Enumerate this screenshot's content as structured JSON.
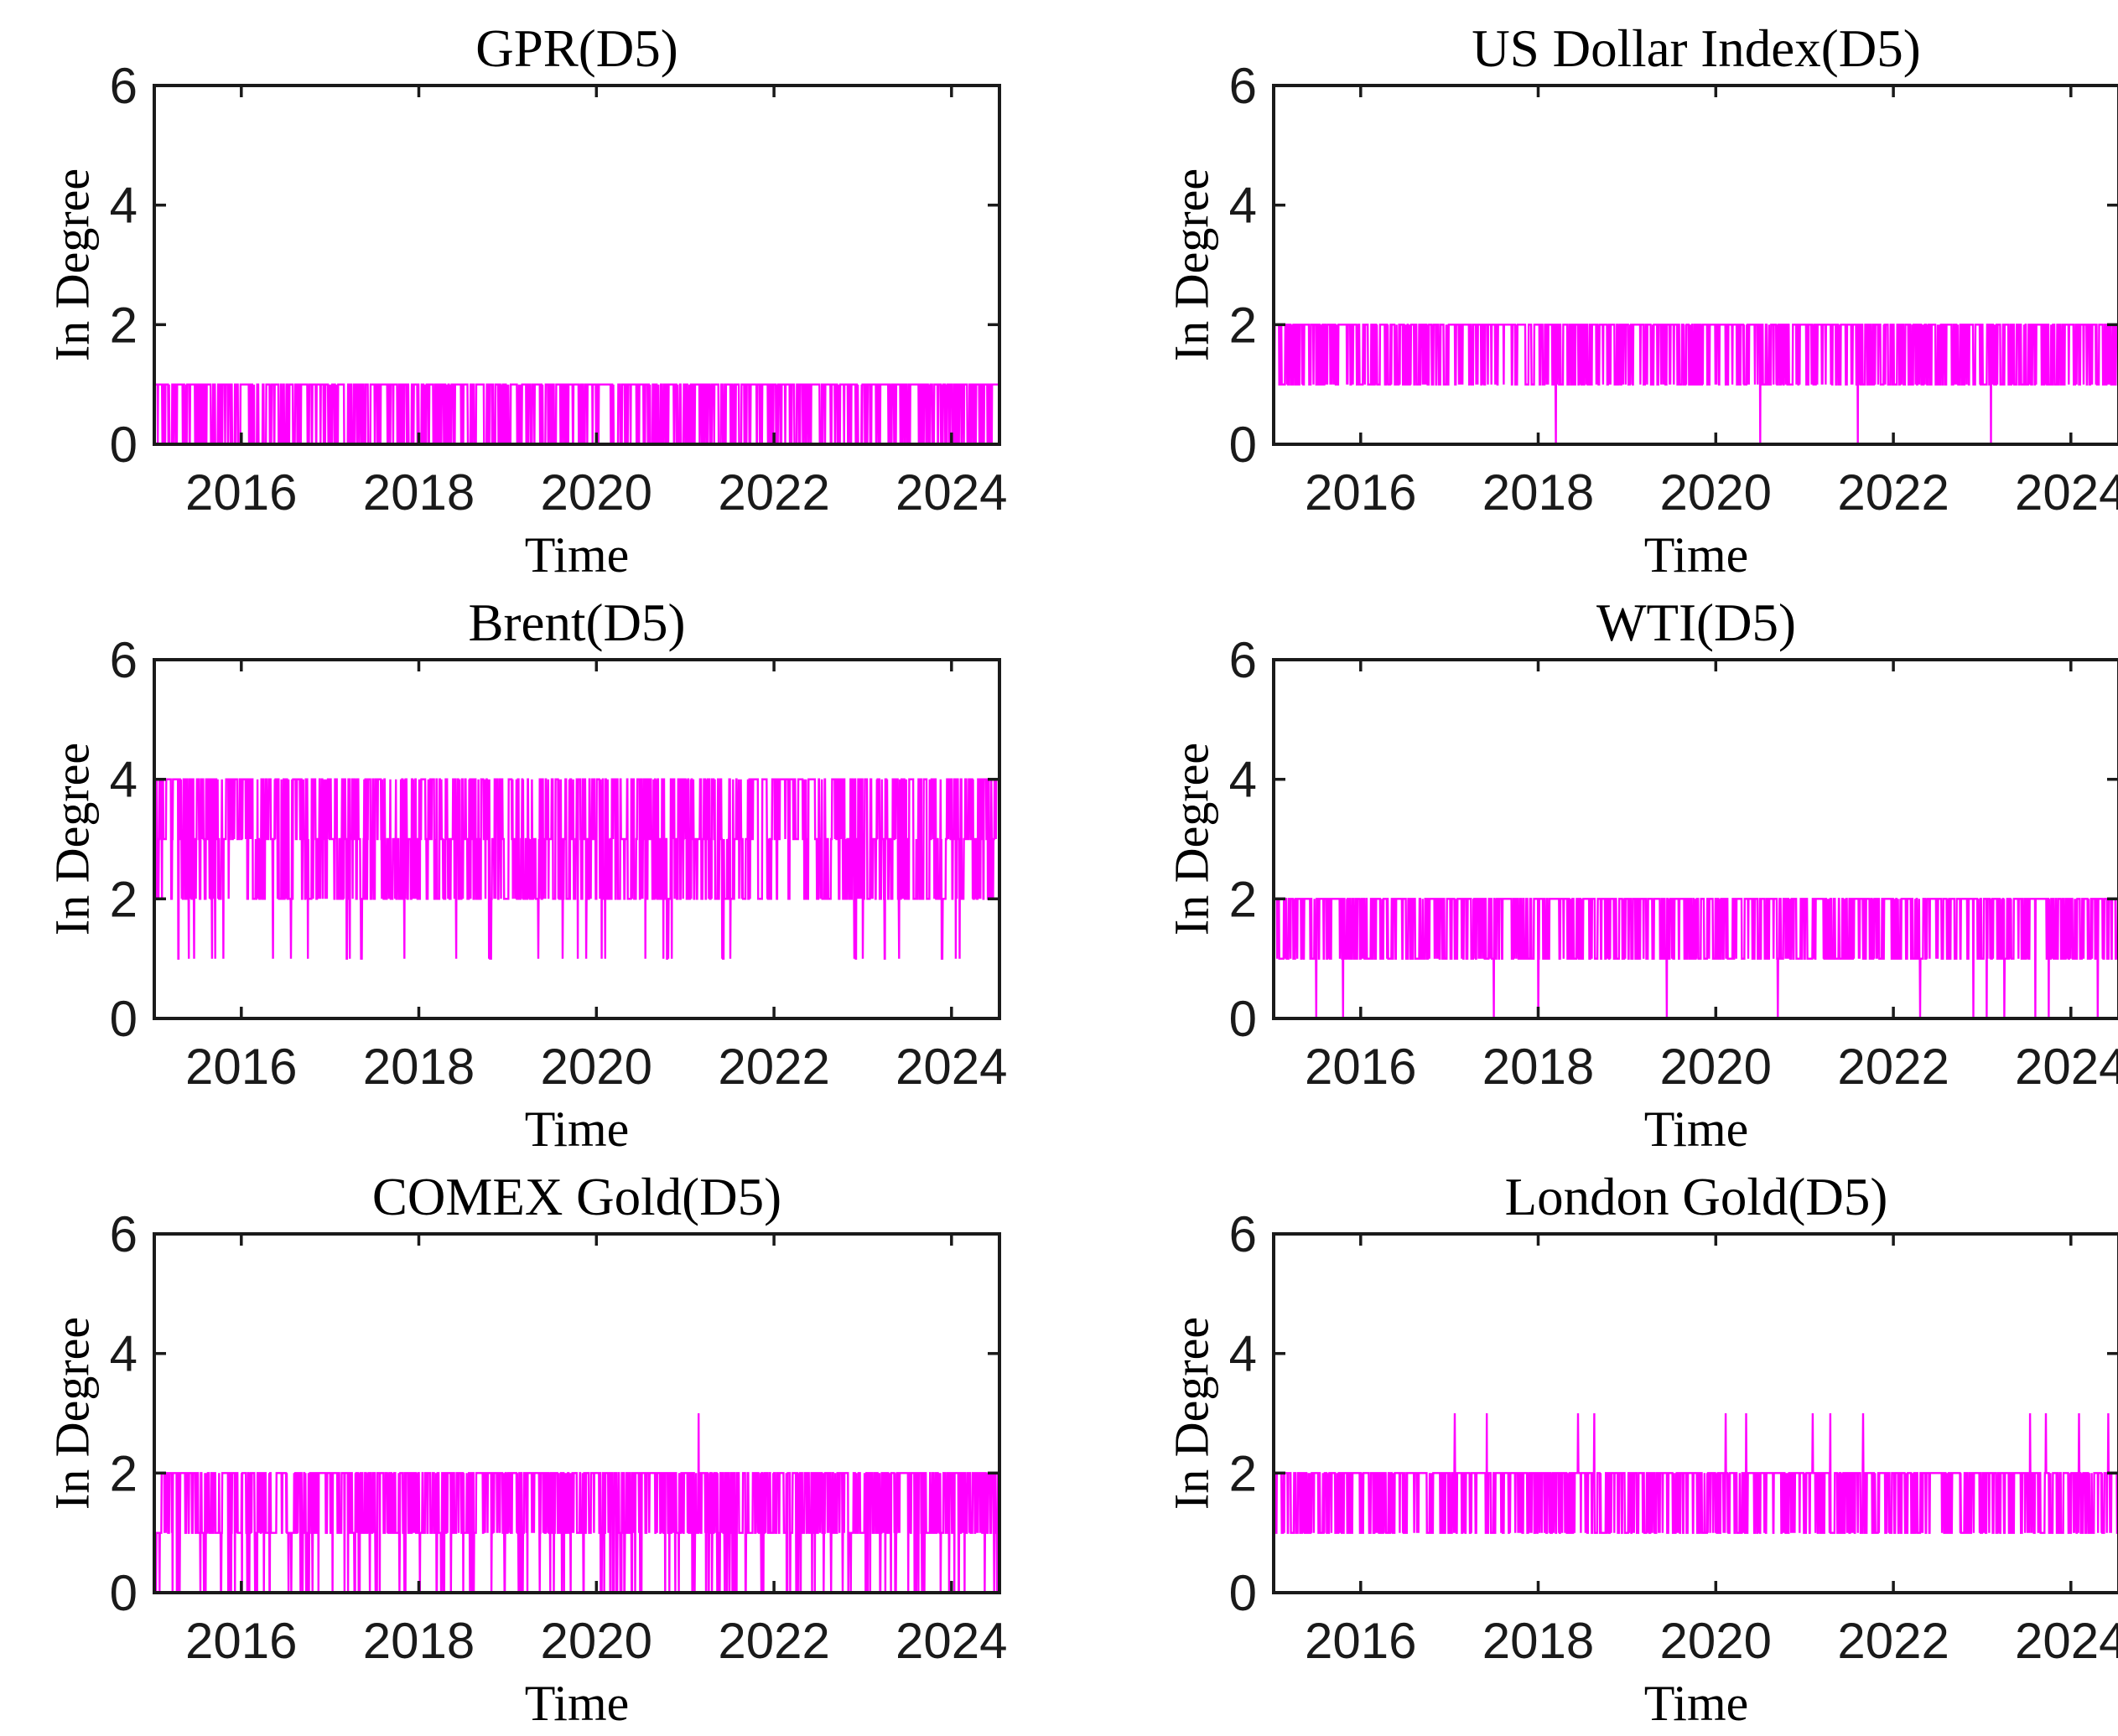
{
  "figure": {
    "background": "#FFFFFF",
    "axis_color": "#1a1a1a",
    "line_color": "#FF00FF",
    "grid": false,
    "layout": "2 columns x 3 rows of subplots"
  },
  "chart_data": [
    {
      "type": "line",
      "title": "GPR(D5)",
      "xlabel": "Time",
      "ylabel": "In Degree",
      "xlim": [
        2015.02,
        2024.54
      ],
      "ylim": [
        0,
        6
      ],
      "xticks": [
        2016,
        2018,
        2020,
        2022,
        2024
      ],
      "yticks": [
        0,
        2,
        4,
        6
      ],
      "line_color": "#FF00FF",
      "observed": {
        "min": 0,
        "max": 1,
        "typical_band": [
          0,
          1
        ],
        "description": "In-degree alternates densely between 0 and 1 for the whole 2015-2024 span; continuous line along 1 with frequent single-day drops to 0 and occasional quiet gaps at 1."
      },
      "series_model": {
        "states": [
          0,
          1
        ],
        "weights": [
          0.45,
          0.55
        ],
        "stay": [
          0.3,
          0.62
        ],
        "points_per_year": 252,
        "seed": 11
      },
      "events": {
        "zeros": [],
        "spikes": []
      }
    },
    {
      "type": "line",
      "title": "US Dollar Index(D5)",
      "xlabel": "Time",
      "ylabel": "In Degree",
      "xlim": [
        2015.02,
        2024.54
      ],
      "ylim": [
        0,
        6
      ],
      "xticks": [
        2016,
        2018,
        2020,
        2022,
        2024
      ],
      "yticks": [
        0,
        2,
        4,
        6
      ],
      "line_color": "#FF00FF",
      "observed": {
        "min": 0,
        "max": 2,
        "typical_band": [
          1,
          2
        ],
        "description": "Dense oscillation between 1 and 2 with solid line along 2; four isolated single-day drops to 0.",
        "zero_dip_years": [
          2018.2,
          2020.5,
          2021.6,
          2023.1
        ]
      },
      "series_model": {
        "states": [
          1,
          2
        ],
        "weights": [
          0.45,
          0.55
        ],
        "stay": [
          0.35,
          0.6
        ],
        "points_per_year": 252,
        "seed": 22
      },
      "events": {
        "zeros": [
          2018.2,
          2020.5,
          2021.6,
          2023.1
        ],
        "spikes": []
      }
    },
    {
      "type": "line",
      "title": "Brent(D5)",
      "xlabel": "Time",
      "ylabel": "In Degree",
      "xlim": [
        2015.02,
        2024.54
      ],
      "ylim": [
        0,
        6
      ],
      "xticks": [
        2016,
        2018,
        2020,
        2022,
        2024
      ],
      "yticks": [
        0,
        2,
        4,
        6
      ],
      "line_color": "#FF00FF",
      "observed": {
        "min": 1,
        "max": 4,
        "typical_band": [
          2,
          4
        ],
        "description": "Very dense oscillation among 2, 3 and 4 (near-solid 2-4 band, top edge at 4); sparse single-day dips to 1 throughout."
      },
      "series_model": {
        "states": [
          1,
          2,
          3,
          4
        ],
        "weights": [
          0.03,
          0.31,
          0.32,
          0.34
        ],
        "stay": [
          0.2,
          0.5,
          0.38,
          0.52
        ],
        "points_per_year": 252,
        "seed": 33
      },
      "events": {
        "zeros": [],
        "spikes": []
      }
    },
    {
      "type": "line",
      "title": "WTI(D5)",
      "xlabel": "Time",
      "ylabel": "In Degree",
      "xlim": [
        2015.02,
        2024.54
      ],
      "ylim": [
        0,
        6
      ],
      "xticks": [
        2016,
        2018,
        2020,
        2022,
        2024
      ],
      "yticks": [
        0,
        2,
        4,
        6
      ],
      "line_color": "#FF00FF",
      "observed": {
        "min": 0,
        "max": 2,
        "typical_band": [
          1,
          2
        ],
        "description": "Dense oscillation between 1 and 2 with solid line along 2; about a dozen isolated single-day drops to 0, clustered after 2022.",
        "zero_dip_years": [
          2015.5,
          2015.8,
          2017.5,
          2018.0,
          2019.45,
          2020.7,
          2022.3,
          2022.9,
          2023.05,
          2023.25,
          2023.6,
          2023.75,
          2024.3
        ]
      },
      "series_model": {
        "states": [
          1,
          2
        ],
        "weights": [
          0.45,
          0.55
        ],
        "stay": [
          0.4,
          0.58
        ],
        "points_per_year": 252,
        "seed": 44
      },
      "events": {
        "zeros": [
          2015.5,
          2015.8,
          2017.5,
          2018.0,
          2019.45,
          2020.7,
          2022.3,
          2022.9,
          2023.05,
          2023.25,
          2023.6,
          2023.75,
          2024.3
        ],
        "spikes": []
      }
    },
    {
      "type": "line",
      "title": "COMEX Gold(D5)",
      "xlabel": "Time",
      "ylabel": "In Degree",
      "xlim": [
        2015.02,
        2024.54
      ],
      "ylim": [
        0,
        6
      ],
      "xticks": [
        2016,
        2018,
        2020,
        2022,
        2024
      ],
      "yticks": [
        0,
        2,
        4,
        6
      ],
      "line_color": "#FF00FF",
      "observed": {
        "min": 0,
        "max": 3,
        "typical_band": [
          1,
          2
        ],
        "description": "Dense 1-2 band with solid line along 2 plus frequent drops to 0; a single spike to 3 near 2021.15.",
        "spike_years": [
          2021.15
        ]
      },
      "series_model": {
        "states": [
          0,
          1,
          2
        ],
        "weights": [
          0.11,
          0.42,
          0.47
        ],
        "stay": [
          0.22,
          0.42,
          0.55
        ],
        "points_per_year": 252,
        "seed": 55
      },
      "events": {
        "zeros": [],
        "spikes": [
          {
            "x": 2021.15,
            "value": 3
          }
        ]
      }
    },
    {
      "type": "line",
      "title": "London Gold(D5)",
      "xlabel": "Time",
      "ylabel": "In Degree",
      "xlim": [
        2015.02,
        2024.54
      ],
      "ylim": [
        0,
        6
      ],
      "xticks": [
        2016,
        2018,
        2020,
        2022,
        2024
      ],
      "yticks": [
        0,
        2,
        4,
        6
      ],
      "line_color": "#FF00FF",
      "observed": {
        "min": 1,
        "max": 3,
        "typical_band": [
          1,
          2
        ],
        "description": "Dense oscillation between 1 and 2 (never 0); isolated single-day spikes to 3.",
        "spike_years": [
          2017.06,
          2017.42,
          2018.45,
          2018.63,
          2020.11,
          2020.34,
          2021.09,
          2021.29,
          2021.66,
          2023.54,
          2023.72,
          2024.09,
          2024.42
        ]
      },
      "series_model": {
        "states": [
          1,
          2
        ],
        "weights": [
          0.4,
          0.6
        ],
        "stay": [
          0.33,
          0.57
        ],
        "points_per_year": 252,
        "seed": 66
      },
      "events": {
        "zeros": [],
        "spikes": [
          {
            "x": 2017.06,
            "value": 3
          },
          {
            "x": 2017.42,
            "value": 3
          },
          {
            "x": 2018.45,
            "value": 3
          },
          {
            "x": 2018.63,
            "value": 3
          },
          {
            "x": 2020.11,
            "value": 3
          },
          {
            "x": 2020.34,
            "value": 3
          },
          {
            "x": 2021.09,
            "value": 3
          },
          {
            "x": 2021.29,
            "value": 3
          },
          {
            "x": 2021.66,
            "value": 3
          },
          {
            "x": 2023.54,
            "value": 3
          },
          {
            "x": 2023.72,
            "value": 3
          },
          {
            "x": 2024.09,
            "value": 3
          },
          {
            "x": 2024.42,
            "value": 3
          }
        ]
      }
    }
  ]
}
